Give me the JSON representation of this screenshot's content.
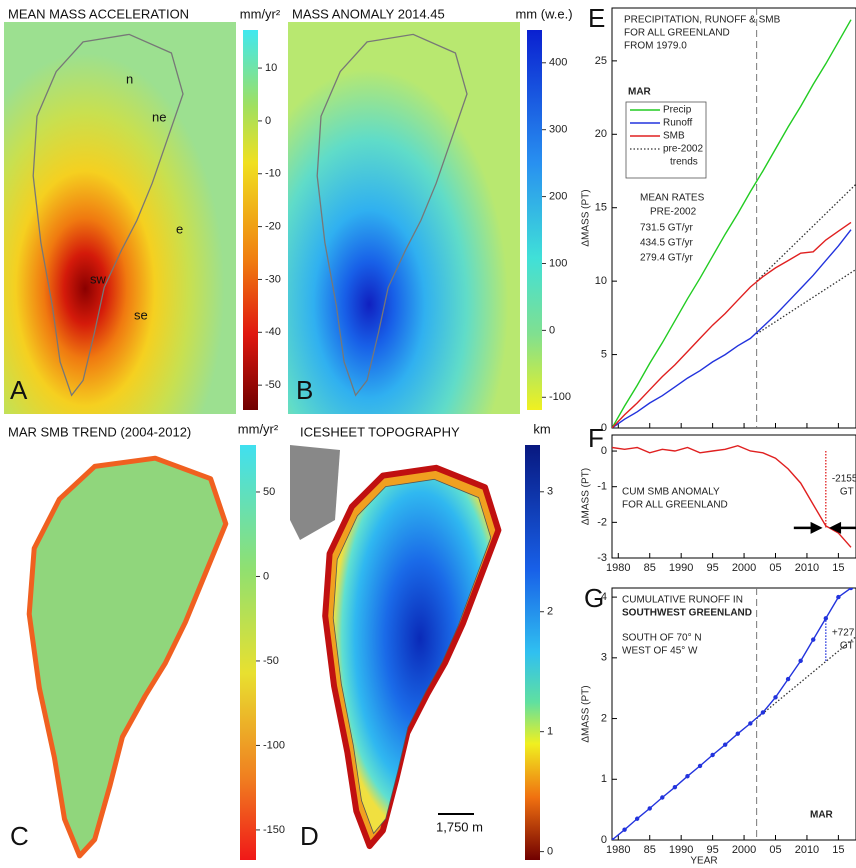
{
  "maps": [
    {
      "panel": "A",
      "title": "MEAN MASS ACCELERATION",
      "unit": "mm/yr²",
      "cbar_lim": [
        -54.7,
        17.2
      ],
      "cbar_ticks": [
        10,
        0,
        -10,
        -20,
        -30,
        -40,
        -50
      ],
      "labels": [
        "n",
        "ne",
        "e",
        "se",
        "sw"
      ]
    },
    {
      "panel": "B",
      "title": "MASS ANOMALY  2014.45",
      "unit": "mm (w.e.)",
      "cbar_lim": [
        -119,
        449
      ],
      "cbar_ticks": [
        400,
        300,
        200,
        100,
        0,
        -100
      ],
      "labels": []
    },
    {
      "panel": "C",
      "title": "MAR SMB TREND (2004-2012)",
      "unit": "mm/yr²",
      "cbar_lim": [
        -167.8,
        77.8
      ],
      "cbar_ticks": [
        50,
        0,
        -50,
        -100,
        -150
      ],
      "labels": []
    },
    {
      "panel": "D",
      "title": "ICESHEET TOPOGRAPHY",
      "unit": "km",
      "cbar_lim": [
        -0.07,
        3.39
      ],
      "cbar_ticks": [
        3,
        2,
        1,
        0
      ],
      "labels": [
        "1,750 m"
      ]
    }
  ],
  "chart_data": [
    {
      "type": "line",
      "panel": "E",
      "title_lines": [
        "PRECIPITATION, RUNOFF & SMB",
        "FOR ALL GREENLAND",
        "FROM 1979.0"
      ],
      "ylabel": "ΔMASS  (PT)",
      "xlim": [
        1979,
        2017.8
      ],
      "ylim": [
        0,
        28.6
      ],
      "yticks": [
        0,
        5,
        10,
        15,
        20,
        25
      ],
      "xticks": [
        1980,
        1985,
        1990,
        1995,
        2000,
        2005,
        2010,
        2015
      ],
      "vline": 2002,
      "legend_title": "MAR",
      "x": [
        1979,
        1981,
        1983,
        1985,
        1987,
        1989,
        1991,
        1993,
        1995,
        1997,
        1999,
        2001,
        2003,
        2005,
        2007,
        2009,
        2011,
        2013,
        2015,
        2017
      ],
      "series": [
        {
          "name": "Precip",
          "color": "#22cc22",
          "values": [
            0,
            1.5,
            2.9,
            4.4,
            5.8,
            7.3,
            8.8,
            10.2,
            11.7,
            13.2,
            14.6,
            16.1,
            17.5,
            19.0,
            20.5,
            21.9,
            23.4,
            24.8,
            26.3,
            27.8
          ]
        },
        {
          "name": "Runoff",
          "color": "#2233dd",
          "values": [
            0,
            0.6,
            1.1,
            1.7,
            2.2,
            2.8,
            3.4,
            3.9,
            4.5,
            5.0,
            5.6,
            6.1,
            6.9,
            7.7,
            8.6,
            9.5,
            10.4,
            11.4,
            12.4,
            13.5
          ]
        },
        {
          "name": "SMB",
          "color": "#e02020",
          "values": [
            0,
            0.9,
            1.7,
            2.6,
            3.5,
            4.3,
            5.2,
            6.1,
            7.0,
            7.8,
            8.7,
            9.6,
            10.3,
            10.9,
            11.4,
            11.9,
            12.0,
            12.8,
            13.4,
            14.0
          ]
        }
      ],
      "trends": {
        "name_lines": [
          "pre-2002",
          "trends"
        ],
        "color": "#333333",
        "lines": [
          {
            "x": [
              2002,
              2017.8
            ],
            "values": [
              6.4,
              10.8
            ]
          },
          {
            "x": [
              2002,
              2017.8
            ],
            "values": [
              10.0,
              16.6
            ]
          }
        ]
      },
      "rates_title": [
        "MEAN RATES",
        "PRE-2002"
      ],
      "rates": [
        {
          "text": "731.5 GT/yr",
          "color": "#22aa22"
        },
        {
          "text": "434.5 GT/yr",
          "color": "#e02020"
        },
        {
          "text": "279.4 GT/yr",
          "color": "#2233dd"
        }
      ]
    },
    {
      "type": "line",
      "panel": "F",
      "text_lines": [
        "CUM SMB ANOMALY",
        "FOR ALL GREENLAND"
      ],
      "ylabel": "ΔMASS  (PT)",
      "xlim": [
        1979,
        2017.8
      ],
      "ylim": [
        -3,
        0.45
      ],
      "yticks": [
        0,
        -1,
        -2,
        -3
      ],
      "xticks": [
        1980,
        {
          "value": 1985,
          "label": "85"
        },
        1990,
        {
          "value": 1995,
          "label": "95"
        },
        2000,
        {
          "value": 2005,
          "label": "05"
        },
        2010,
        {
          "value": 2015,
          "label": "15"
        }
      ],
      "x": [
        1979,
        1981,
        1983,
        1985,
        1987,
        1989,
        1991,
        1993,
        1995,
        1997,
        1999,
        2001,
        2003,
        2005,
        2007,
        2009,
        2011,
        2013,
        2015,
        2017
      ],
      "series": [
        {
          "name": "SMB",
          "color": "#e02020",
          "values": [
            0.1,
            0.05,
            0.1,
            -0.05,
            0.05,
            0,
            0.1,
            -0.05,
            0,
            0.05,
            0.15,
            0,
            -0.05,
            -0.2,
            -0.5,
            -0.9,
            -1.5,
            -2.1,
            -2.3,
            -2.7
          ]
        }
      ],
      "marker": {
        "x": 2013,
        "y": [
          0,
          -2.155
        ],
        "color": "#e02020",
        "labels": [
          "-2155",
          "GT"
        ]
      }
    },
    {
      "type": "line",
      "panel": "G",
      "text_lines": [
        "CUMULATIVE  RUNOFF IN",
        "SOUTHWEST GREENLAND",
        "SOUTH OF 70° N",
        "  WEST OF 45° W"
      ],
      "note": "MAR",
      "ylabel": "ΔMASS  (PT)",
      "xlabel": "YEAR",
      "xlim": [
        1979,
        2017.8
      ],
      "ylim": [
        0,
        4.15
      ],
      "yticks": [
        0,
        1,
        2,
        3,
        4
      ],
      "vline": 2002,
      "xticks": [
        1980,
        {
          "value": 1985,
          "label": "85"
        },
        1990,
        {
          "value": 1995,
          "label": "95"
        },
        2000,
        {
          "value": 2005,
          "label": "05"
        },
        2010,
        {
          "value": 2015,
          "label": "15"
        }
      ],
      "x": [
        1979,
        1981,
        1983,
        1985,
        1987,
        1989,
        1991,
        1993,
        1995,
        1997,
        1999,
        2001,
        2003,
        2005,
        2007,
        2009,
        2011,
        2013,
        2015,
        2017
      ],
      "series": [
        {
          "name": "Runoff",
          "color": "#2233dd",
          "values": [
            0,
            0.17,
            0.35,
            0.52,
            0.7,
            0.87,
            1.05,
            1.22,
            1.4,
            1.57,
            1.75,
            1.92,
            2.1,
            2.35,
            2.65,
            2.95,
            3.3,
            3.65,
            4.0,
            4.15
          ]
        }
      ],
      "trends": {
        "color": "#333333",
        "lines": [
          {
            "x": [
              2002,
              2017.8
            ],
            "values": [
              2.0,
              3.35
            ]
          }
        ]
      },
      "marker": {
        "x": 2013,
        "y": [
          2.95,
          3.65
        ],
        "color": "#2233dd",
        "labels": [
          "+727",
          "GT"
        ]
      }
    }
  ]
}
